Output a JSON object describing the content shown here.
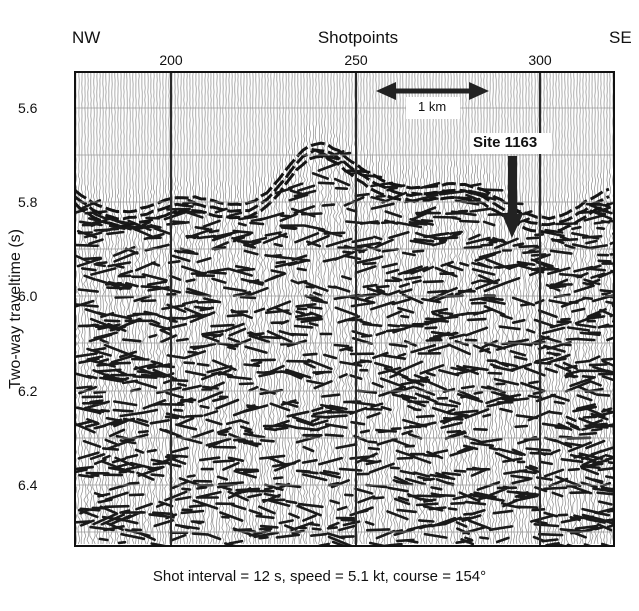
{
  "direction": {
    "left": "NW",
    "right": "SE"
  },
  "x_axis": {
    "title": "Shotpoints",
    "ticks": [
      200,
      250,
      300
    ]
  },
  "y_axis": {
    "title": "Two-way traveltime (s)",
    "ticks": [
      "5.6",
      "5.8",
      "6.0",
      "6.2",
      "6.4"
    ]
  },
  "annotations": {
    "scale_bar_label": "1 km",
    "site_label": "Site 1163"
  },
  "caption": "Shot interval = 12 s, speed = 5.1 kt, course = 154°",
  "colors": {
    "ink": "#111111",
    "grid": "#9a9a9a",
    "background": "#ffffff"
  }
}
